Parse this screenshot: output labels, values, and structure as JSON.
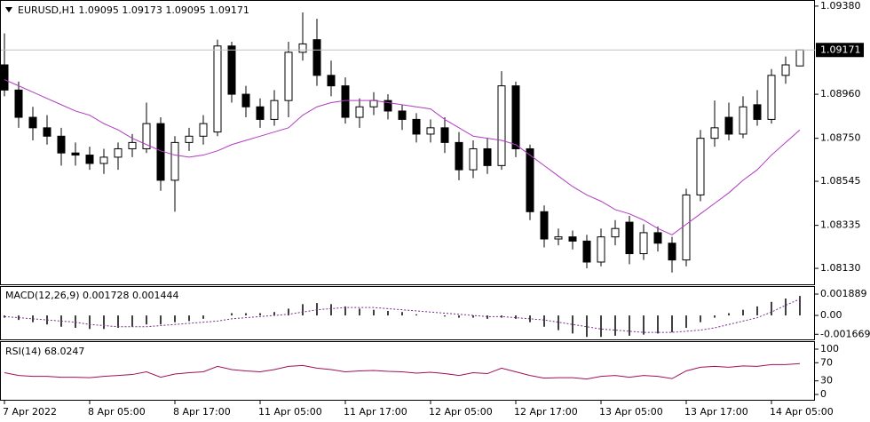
{
  "chart_data": [
    {
      "type": "candlestick",
      "title": "EURUSD,H1  1.09095 1.09173 1.09095 1.09171",
      "categories": [
        "7 Apr 2022",
        null,
        null,
        null,
        null,
        null,
        "8 Apr 05:00",
        null,
        null,
        null,
        null,
        null,
        "8 Apr 17:00",
        null,
        null,
        null,
        null,
        null,
        "11 Apr 05:00",
        null,
        null,
        null,
        null,
        null,
        "11 Apr 17:00",
        null,
        null,
        null,
        null,
        null,
        "12 Apr 05:00",
        null,
        null,
        null,
        null,
        null,
        "12 Apr 17:00",
        null,
        null,
        null,
        null,
        null,
        "13 Apr 05:00",
        null,
        null,
        null,
        null,
        null,
        "13 Apr 17:00",
        null,
        null,
        null,
        null,
        null,
        "14 Apr 05:00",
        null,
        null
      ],
      "open": [
        1.091,
        1.0898,
        1.0885,
        1.088,
        1.0876,
        1.0868,
        1.0867,
        1.0863,
        1.0866,
        1.087,
        1.087,
        1.0882,
        1.0855,
        1.0873,
        1.0876,
        1.0878,
        1.0919,
        1.0896,
        1.089,
        1.0884,
        1.0893,
        1.0916,
        1.0922,
        1.0905,
        1.09,
        1.0885,
        1.089,
        1.0893,
        1.0888,
        1.0884,
        1.0877,
        1.088,
        1.0873,
        1.086,
        1.087,
        1.0862,
        1.09,
        1.087,
        1.084,
        1.0827,
        1.0828,
        1.0826,
        1.0816,
        1.0828,
        1.0835,
        1.082,
        1.083,
        1.0825,
        1.0817,
        1.0848,
        1.0875,
        1.0885,
        1.0877,
        1.0891,
        1.0884,
        1.0905,
        1.09095
      ],
      "high": [
        1.0925,
        1.0902,
        1.089,
        1.0886,
        1.088,
        1.0873,
        1.0871,
        1.087,
        1.0873,
        1.0877,
        1.0892,
        1.0885,
        1.0876,
        1.088,
        1.0886,
        1.0922,
        1.0921,
        1.09,
        1.0894,
        1.0898,
        1.0921,
        1.0935,
        1.0932,
        1.0912,
        1.0904,
        1.0894,
        1.0897,
        1.0896,
        1.0891,
        1.0887,
        1.0884,
        1.0885,
        1.0878,
        1.0874,
        1.0875,
        1.0907,
        1.0902,
        1.0872,
        1.0843,
        1.0832,
        1.0831,
        1.0829,
        1.0832,
        1.0836,
        1.0838,
        1.0834,
        1.0833,
        1.0828,
        1.0851,
        1.0879,
        1.0893,
        1.0892,
        1.0895,
        1.0898,
        1.0908,
        1.0914,
        1.09173
      ],
      "low": [
        1.0895,
        1.088,
        1.0874,
        1.0872,
        1.0862,
        1.0862,
        1.086,
        1.0858,
        1.086,
        1.0866,
        1.0868,
        1.085,
        1.084,
        1.0869,
        1.0872,
        1.0876,
        1.0892,
        1.0885,
        1.088,
        1.0881,
        1.0885,
        1.0912,
        1.09,
        1.0895,
        1.0882,
        1.088,
        1.0886,
        1.0884,
        1.0879,
        1.0873,
        1.0873,
        1.0868,
        1.0855,
        1.0856,
        1.0858,
        1.086,
        1.0866,
        1.0836,
        1.0823,
        1.0824,
        1.0822,
        1.0813,
        1.0814,
        1.0824,
        1.0815,
        1.0817,
        1.0821,
        1.0811,
        1.0814,
        1.0845,
        1.0871,
        1.0874,
        1.0875,
        1.0881,
        1.0882,
        1.0901,
        1.09095
      ],
      "close": [
        1.0898,
        1.0885,
        1.088,
        1.0876,
        1.0868,
        1.0867,
        1.0863,
        1.0866,
        1.087,
        1.0873,
        1.0882,
        1.0855,
        1.0873,
        1.0876,
        1.0882,
        1.0919,
        1.0896,
        1.089,
        1.0884,
        1.0893,
        1.0916,
        1.092,
        1.0905,
        1.09,
        1.0885,
        1.089,
        1.0893,
        1.0888,
        1.0884,
        1.0877,
        1.088,
        1.0873,
        1.086,
        1.087,
        1.0862,
        1.09,
        1.087,
        1.084,
        1.0827,
        1.0828,
        1.0826,
        1.0816,
        1.0828,
        1.0832,
        1.082,
        1.083,
        1.0825,
        1.0817,
        1.0848,
        1.0875,
        1.088,
        1.0877,
        1.089,
        1.0884,
        1.0905,
        1.091,
        1.09171
      ],
      "overlay": {
        "color": "#b03cc0",
        "values": [
          1.0903,
          1.09,
          1.0897,
          1.0894,
          1.0891,
          1.0888,
          1.0886,
          1.0882,
          1.0879,
          1.0875,
          1.0872,
          1.0869,
          1.0867,
          1.0866,
          1.0867,
          1.0869,
          1.0872,
          1.0874,
          1.0876,
          1.0878,
          1.088,
          1.0886,
          1.089,
          1.0892,
          1.0893,
          1.0893,
          1.0893,
          1.0892,
          1.0891,
          1.089,
          1.0889,
          1.0884,
          1.088,
          1.0876,
          1.0875,
          1.0874,
          1.0872,
          1.0867,
          1.0862,
          1.0857,
          1.0852,
          1.0848,
          1.0845,
          1.0841,
          1.0839,
          1.0836,
          1.0832,
          1.0829,
          1.0834,
          1.0839,
          1.0844,
          1.0849,
          1.0855,
          1.086,
          1.0867,
          1.0873,
          1.0879
        ]
      },
      "last_price": 1.09171,
      "ylim": [
        1.08054,
        1.09405
      ],
      "yticks": [
        {
          "value": 1.0938,
          "label": "1.09380"
        },
        {
          "value": 1.0896,
          "label": "1.08960"
        },
        {
          "value": 1.0875,
          "label": "1.08750"
        },
        1.08545,
        1.08335,
        {
          "value": 1.0813,
          "label": "1.08130"
        }
      ]
    },
    {
      "type": "macd",
      "title": "MACD(12,26,9) 0.001728 0.001444",
      "histogram": {
        "color": "#000000",
        "values": [
          -0.0002,
          -0.0004,
          -0.0006,
          -0.0008,
          -0.001,
          -0.0011,
          -0.0012,
          -0.0012,
          -0.0011,
          -0.001,
          -0.0008,
          -0.0008,
          -0.0006,
          -0.0005,
          -0.0003,
          0.0,
          0.0002,
          0.0002,
          0.0002,
          0.0003,
          0.0006,
          0.001,
          0.0011,
          0.001,
          0.0008,
          0.0006,
          0.0005,
          0.0004,
          0.0003,
          0.0001,
          0.0,
          -0.0001,
          -0.0002,
          -0.0002,
          -0.0003,
          -0.0002,
          -0.0003,
          -0.0006,
          -0.001,
          -0.0013,
          -0.0016,
          -0.0019,
          -0.0019,
          -0.0018,
          -0.0018,
          -0.0017,
          -0.0016,
          -0.0015,
          -0.0011,
          -0.0006,
          -0.0002,
          0.0002,
          0.0005,
          0.0008,
          0.0012,
          0.0015,
          0.001728
        ]
      },
      "signal": {
        "color": "#7a2a8a",
        "values": [
          -0.0001,
          -0.0002,
          -0.0003,
          -0.0004,
          -0.0005,
          -0.0006,
          -0.0008,
          -0.0009,
          -0.001,
          -0.001,
          -0.001,
          -0.0009,
          -0.0008,
          -0.0007,
          -0.0006,
          -0.0005,
          -0.0003,
          -0.0002,
          -0.0001,
          0.0,
          0.0001,
          0.0003,
          0.0005,
          0.0006,
          0.0007,
          0.0007,
          0.0007,
          0.0006,
          0.0005,
          0.0004,
          0.0003,
          0.0002,
          0.0001,
          0.0,
          -0.0001,
          -0.0001,
          -0.0002,
          -0.0003,
          -0.0004,
          -0.0006,
          -0.0008,
          -0.001,
          -0.0012,
          -0.0013,
          -0.0014,
          -0.0015,
          -0.0015,
          -0.0015,
          -0.0014,
          -0.0013,
          -0.0011,
          -0.0008,
          -0.0005,
          -0.0002,
          0.0003,
          0.0009,
          0.001444
        ]
      },
      "ylim": [
        -0.00212,
        0.00252
      ],
      "yticks": [
        0.001889,
        {
          "value": 0,
          "label": "0.00"
        },
        -0.001669
      ]
    },
    {
      "type": "line",
      "title": "RSI(14) 68.0247",
      "color": "#a0105a",
      "values": [
        48,
        42,
        40,
        40,
        38,
        38,
        37,
        40,
        42,
        44,
        50,
        38,
        45,
        48,
        50,
        62,
        55,
        52,
        50,
        55,
        62,
        64,
        58,
        55,
        50,
        52,
        53,
        51,
        50,
        47,
        49,
        46,
        42,
        48,
        46,
        58,
        50,
        42,
        36,
        37,
        37,
        34,
        40,
        42,
        38,
        42,
        40,
        35,
        52,
        60,
        62,
        60,
        63,
        62,
        66,
        66,
        68.0247
      ],
      "ylim": [
        0,
        100
      ],
      "yticks": [
        100,
        70,
        30,
        0
      ]
    }
  ]
}
